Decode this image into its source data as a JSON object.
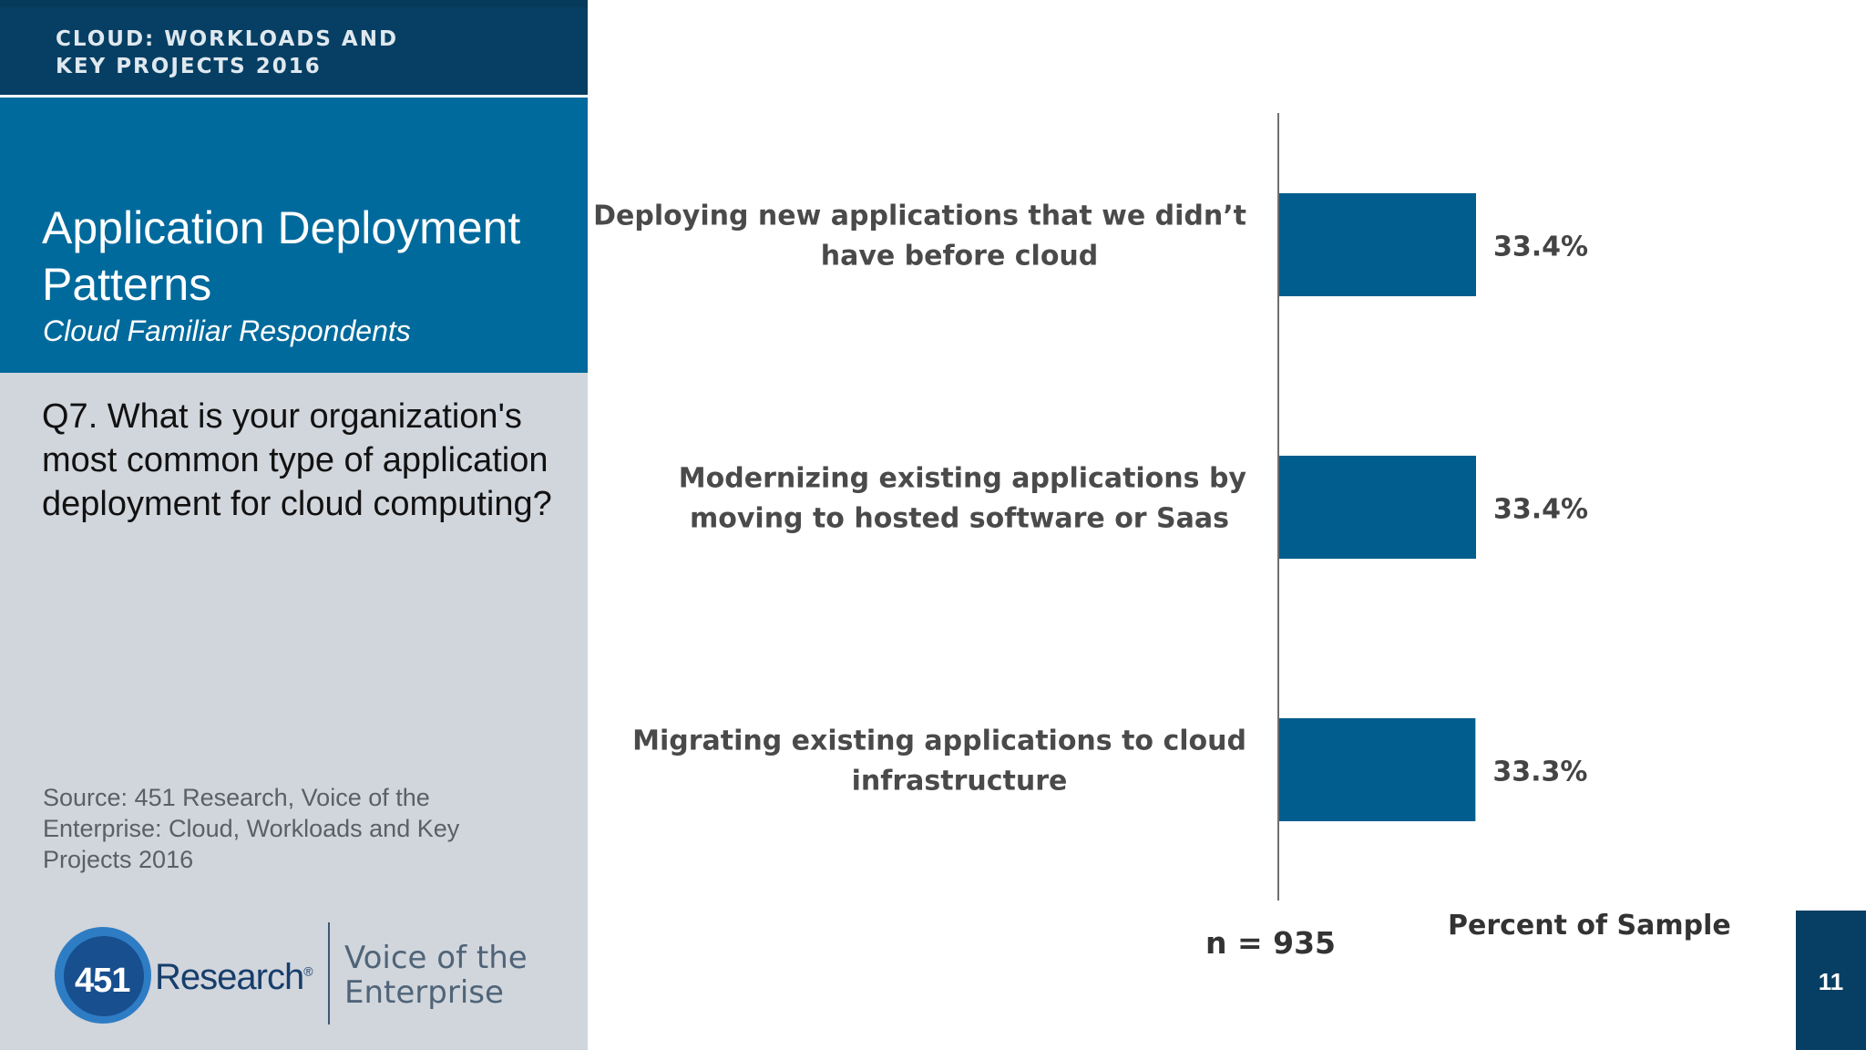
{
  "header": {
    "line1": "CLOUD: WORKLOADS AND",
    "line2": "KEY PROJECTS 2016"
  },
  "slide": {
    "title": "Application Deployment Patterns",
    "subtitle": "Cloud Familiar Respondents",
    "question": "Q7. What is your organization's most common type of application deployment for cloud computing?",
    "source": "Source: 451 Research, Voice of the Enterprise: Cloud, Workloads and Key Projects 2016",
    "page_number": "11"
  },
  "logo": {
    "number": "451",
    "word": "Research",
    "registered": "®",
    "tagline_line1": "Voice of the",
    "tagline_line2": "Enterprise"
  },
  "colors": {
    "bar": "#005d8d",
    "header": "#063f63",
    "title_box": "#006a9c",
    "panel": "#d1d5dc"
  },
  "chart_data": {
    "type": "bar",
    "orientation": "horizontal",
    "categories": [
      [
        "Deploying new applications that we didn’t",
        "have before cloud"
      ],
      [
        "Modernizing existing applications by",
        "moving to hosted software or Saas"
      ],
      [
        "Migrating existing applications to cloud",
        "infrastructure"
      ]
    ],
    "values": [
      33.4,
      33.4,
      33.3
    ],
    "data_labels": [
      "33.4%",
      "33.4%",
      "33.3%"
    ],
    "xlabel": "Percent of Sample",
    "sample_size": "n = 935",
    "grid": false,
    "legend": "none"
  }
}
